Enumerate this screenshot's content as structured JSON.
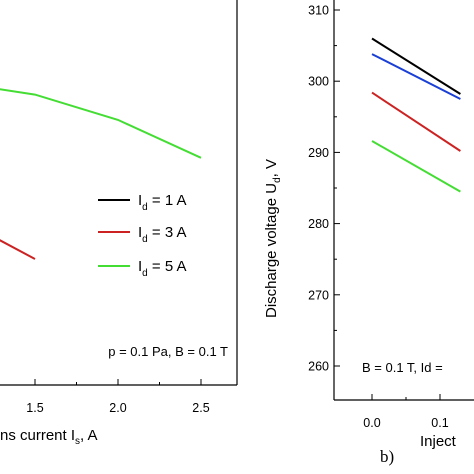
{
  "chart_data": [
    {
      "type": "line",
      "panel": "a",
      "xlabel_visible": "ns current I",
      "xlabel_sub": "s",
      "xlabel_unit": ", A",
      "xticks": [
        "1.5",
        "2.0",
        "2.5"
      ],
      "x_visible_range": [
        1.0,
        2.7
      ],
      "series": [
        {
          "name_main": "I",
          "name_sub": "d",
          "name_rest": " = 1 A",
          "color": "#000000",
          "x": [],
          "y": []
        },
        {
          "name_main": "I",
          "name_sub": "d",
          "name_rest": " = 3 A",
          "color": "#cc2222",
          "x": [
            1.0,
            1.5
          ],
          "y": [
            0.58,
            0.44
          ]
        },
        {
          "name_main": "I",
          "name_sub": "d",
          "name_rest": " = 5 A",
          "color": "#44dd33",
          "x": [
            1.0,
            1.5,
            2.0,
            2.5
          ],
          "y": [
            1.0,
            0.96,
            0.88,
            0.76
          ]
        }
      ],
      "annotation": "p = 0.1 Pa, B = 0.1 T"
    },
    {
      "type": "line",
      "panel": "b",
      "panel_label": "b)",
      "ylabel_main": "Discharge voltage U",
      "ylabel_sub": "d",
      "ylabel_unit": ", V",
      "xlabel_visible": "Inject",
      "yticks": [
        "260",
        "270",
        "280",
        "290",
        "300",
        "310"
      ],
      "ylim": [
        255,
        310
      ],
      "xticks": [
        "0.0",
        "0.1"
      ],
      "x_visible_range": [
        -0.05,
        0.13
      ],
      "series": [
        {
          "color": "#000000",
          "x": [
            0.0,
            0.13
          ],
          "y": [
            306.0,
            298.2
          ]
        },
        {
          "color": "#1a3fd6",
          "x": [
            0.0,
            0.13
          ],
          "y": [
            303.8,
            297.5
          ]
        },
        {
          "color": "#cc2222",
          "x": [
            0.0,
            0.13
          ],
          "y": [
            298.4,
            290.2
          ]
        },
        {
          "color": "#44dd33",
          "x": [
            0.0,
            0.13
          ],
          "y": [
            291.6,
            284.5
          ]
        }
      ],
      "annotation": "B = 0.1 T, Id = "
    }
  ]
}
